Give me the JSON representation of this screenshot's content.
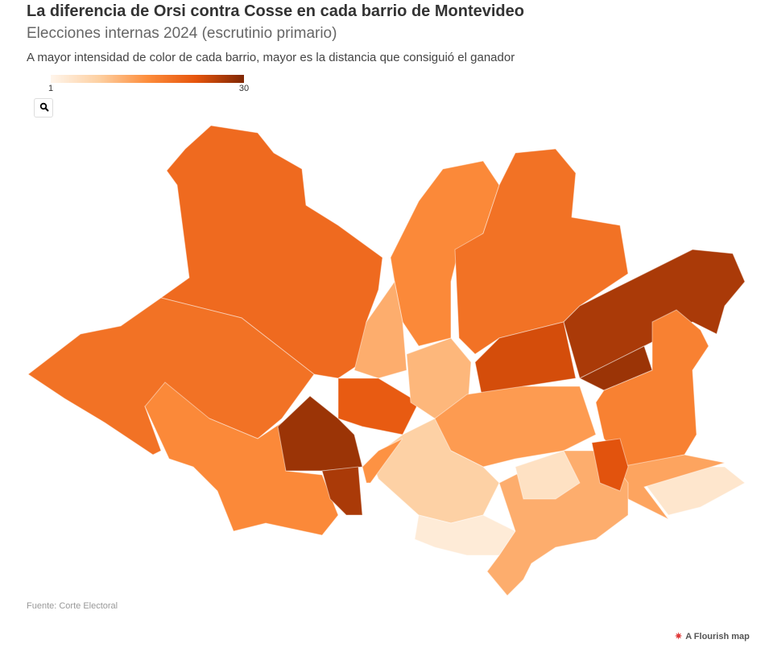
{
  "header": {
    "title": "La diferencia de Orsi contra Cosse en cada barrio de Montevideo",
    "subtitle": "Elecciones internas 2024 (escrutinio primario)",
    "description": "A mayor intensidad de color de cada barrio, mayor es la distancia que consiguió el ganador"
  },
  "legend": {
    "min": 1,
    "max": 30,
    "colors": [
      "#fff5eb",
      "#fdd0a2",
      "#fd8d3c",
      "#e6550d",
      "#7f2704"
    ]
  },
  "region_values": [
    20,
    19,
    16,
    28,
    27,
    16,
    19,
    27,
    28,
    17,
    4,
    13,
    12,
    22,
    24,
    11,
    14,
    8,
    3,
    12,
    5,
    23,
    15
  ],
  "footer": {
    "source": "Fuente: Corte Electoral",
    "credit": "A Flourish map"
  }
}
